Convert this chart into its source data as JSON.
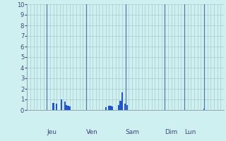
{
  "title": "",
  "ylim": [
    0,
    10
  ],
  "yticks": [
    0,
    1,
    2,
    3,
    4,
    5,
    6,
    7,
    8,
    9,
    10
  ],
  "background_color": "#cef0f0",
  "plot_bg_color": "#cef0f0",
  "bar_color": "#2255cc",
  "grid_color": "#aacccc",
  "tick_label_color": "#444477",
  "xlabel_color": "#000066",
  "day_label_color": "#444477",
  "n_bars": 120,
  "bars": [
    0,
    0,
    0,
    0,
    0,
    0,
    0,
    0,
    0,
    0,
    0,
    0,
    0,
    0,
    0,
    0,
    0.7,
    0,
    0.6,
    0,
    0,
    1.0,
    0,
    0.8,
    0.5,
    0.4,
    0.35,
    0,
    0,
    0,
    0,
    0,
    0,
    0,
    0,
    0,
    0,
    0,
    0,
    0,
    0,
    0,
    0,
    0,
    0,
    0,
    0,
    0,
    0.3,
    0,
    0.4,
    0.4,
    0.35,
    0,
    0,
    0,
    0.5,
    0.9,
    1.7,
    0,
    0.6,
    0.5,
    0,
    0,
    0,
    0,
    0,
    0,
    0,
    0,
    0,
    0,
    0,
    0,
    0,
    0,
    0,
    0,
    0,
    0,
    0,
    0,
    0,
    0,
    0,
    0,
    0,
    0,
    0,
    0,
    0,
    0,
    0,
    0,
    0,
    0,
    0,
    0,
    0,
    0,
    0,
    0,
    0,
    0,
    0,
    0,
    0,
    0,
    0.15,
    0,
    0,
    0,
    0,
    0,
    0,
    0,
    0,
    0,
    0,
    0
  ],
  "day_lines_x": [
    12,
    36,
    60,
    84,
    96,
    108
  ],
  "day_labels": [
    {
      "x": 12,
      "label": "Jeu"
    },
    {
      "x": 36,
      "label": "Ven"
    },
    {
      "x": 60,
      "label": "Sam"
    },
    {
      "x": 84,
      "label": "Dim"
    },
    {
      "x": 96,
      "label": "Lun"
    }
  ]
}
